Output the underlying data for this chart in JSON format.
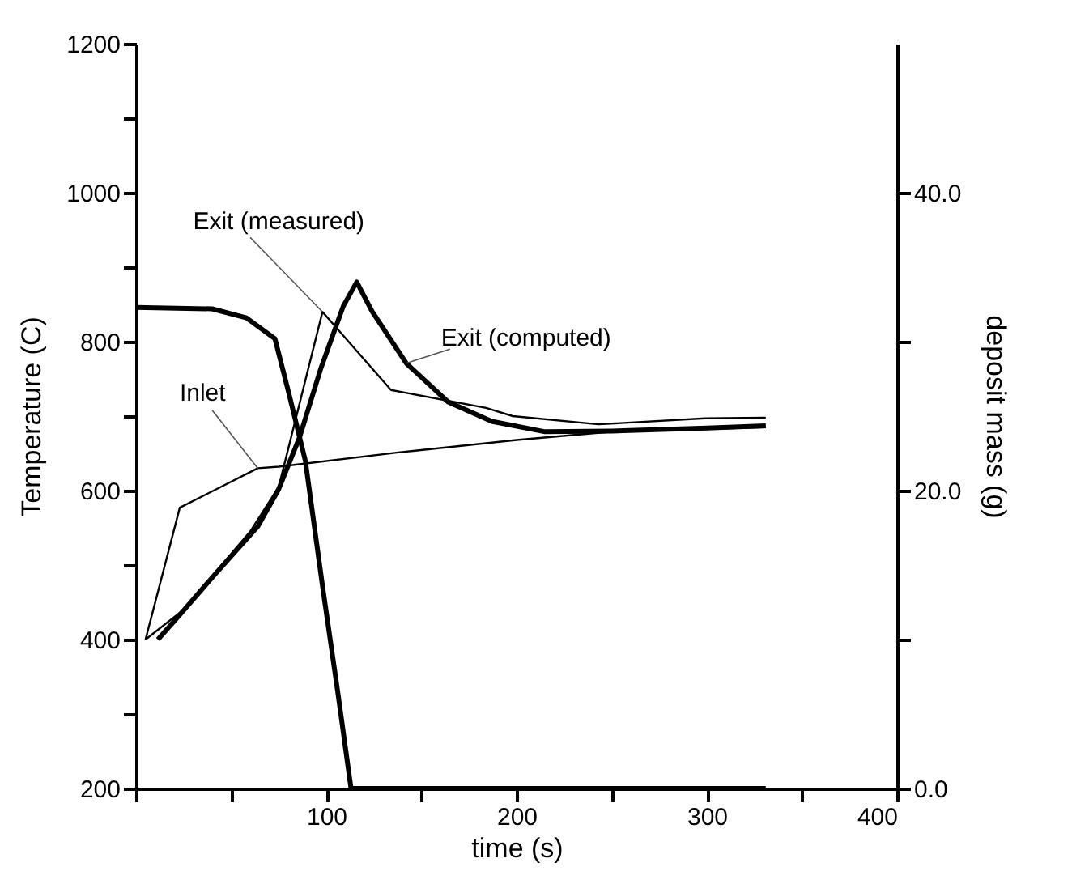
{
  "chart_data": {
    "type": "line",
    "xlabel": "time (s)",
    "ylabel": "Temperature (C)",
    "y2label": "deposit mass (g)",
    "xlim": [
      0,
      400
    ],
    "xticks": [
      {
        "value": 0,
        "label": null
      },
      {
        "value": 50,
        "label": null
      },
      100,
      {
        "value": 150,
        "label": null
      },
      200,
      {
        "value": 250,
        "label": null
      },
      300,
      {
        "value": 350,
        "label": null
      },
      400
    ],
    "ylim": [
      200,
      1200
    ],
    "yticks": [
      200,
      {
        "value": 300,
        "label": null
      },
      400,
      {
        "value": 500,
        "label": null
      },
      600,
      {
        "value": 700,
        "label": null
      },
      800,
      {
        "value": 900,
        "label": null
      },
      1000,
      {
        "value": 1100,
        "label": null
      },
      1200
    ],
    "y2lim": [
      0,
      50
    ],
    "y2ticks": [
      {
        "value": 0,
        "label": "0.0"
      },
      {
        "value": 10,
        "label": null
      },
      {
        "value": 20,
        "label": "20.0"
      },
      {
        "value": 30,
        "label": null
      },
      {
        "value": 40,
        "label": "40.0"
      }
    ],
    "grid": false,
    "marker": "none",
    "line_style": "solid",
    "series": [
      {
        "name": "Exit (measured)",
        "color": "#000000",
        "x": [
          5,
          25,
          60,
          75,
          98,
          134,
          184,
          198,
          243,
          299,
          331
        ],
        "values": [
          400,
          440,
          545,
          605,
          840,
          735,
          711,
          700,
          689,
          697,
          698
        ]
      },
      {
        "name": "Exit (computed)",
        "color": "#000000",
        "x": [
          11.5,
          25,
          42,
          64,
          75,
          86,
          97,
          109,
          116,
          124,
          142,
          164,
          187,
          215,
          250,
          300,
          331
        ],
        "values": [
          400,
          439,
          489,
          552,
          602,
          672,
          763,
          848,
          880,
          841,
          771,
          719,
          693,
          679,
          680,
          684,
          687
        ]
      },
      {
        "name": "Inlet",
        "color": "#000000",
        "x": [
          5,
          23,
          64,
          75,
          137,
          200,
          250,
          331
        ],
        "values": [
          400,
          577,
          630,
          632,
          651,
          668,
          679,
          685
        ]
      },
      {
        "color": "#000000",
        "axis": "y2",
        "x": [
          0,
          40,
          58,
          73,
          80,
          89,
          98,
          106,
          113,
          200,
          331
        ],
        "values": [
          32.3,
          32.2,
          31.6,
          30.2,
          26.7,
          22.0,
          13.6,
          6.5,
          0,
          0,
          0
        ]
      }
    ]
  }
}
